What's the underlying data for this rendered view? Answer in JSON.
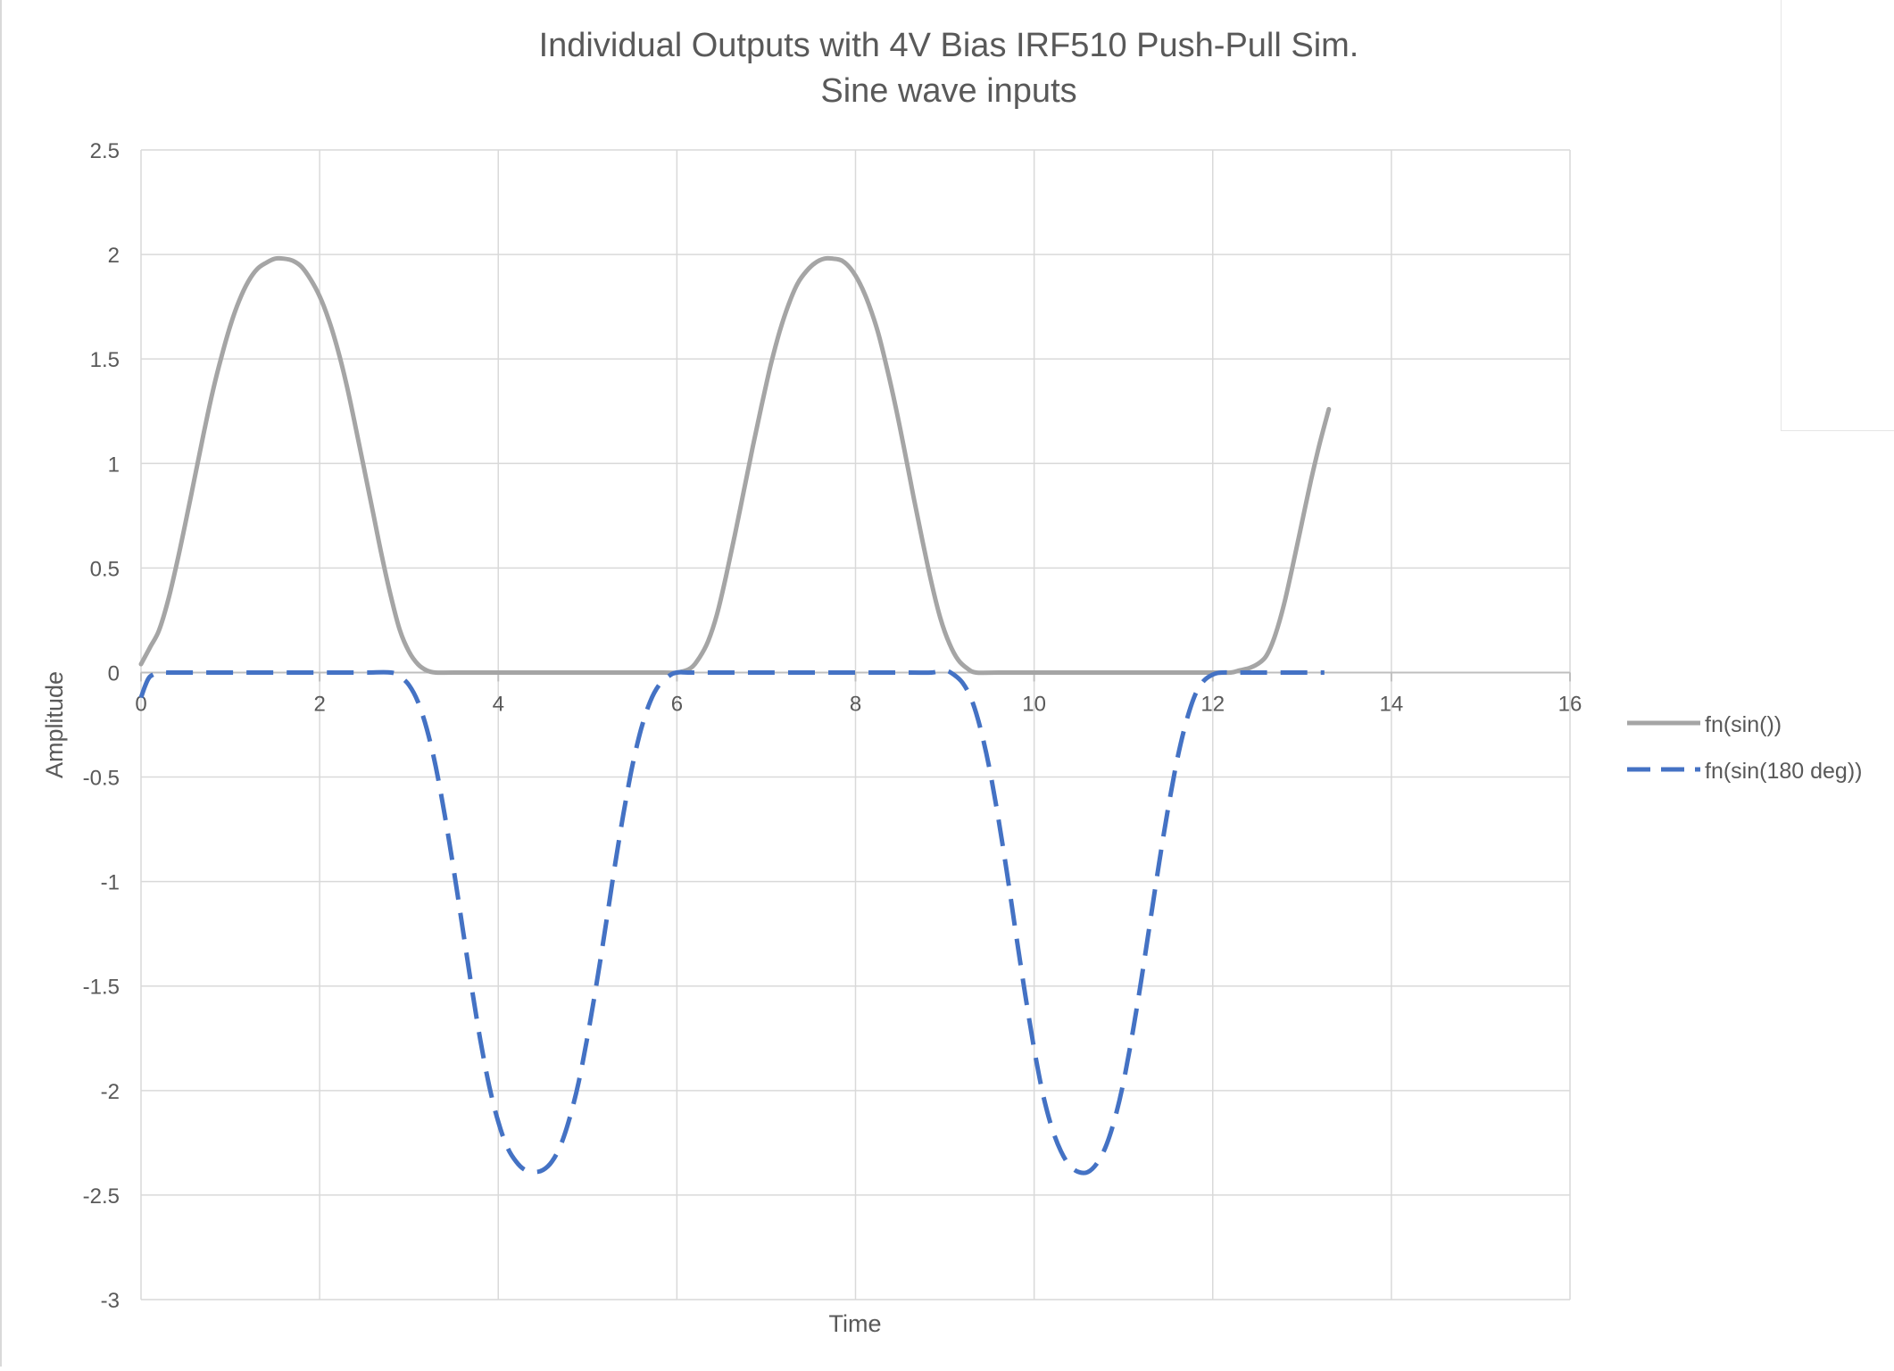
{
  "chart_data": {
    "type": "line",
    "title": "Individual Outputs with 4V Bias IRF510 Push-Pull Sim.",
    "subtitle": "Sine wave inputs",
    "xlabel": "Time",
    "ylabel": "Amplitude",
    "xlim": [
      0,
      16
    ],
    "ylim": [
      -3,
      2.5
    ],
    "x_ticks": [
      "0",
      "2",
      "4",
      "6",
      "8",
      "10",
      "12",
      "14",
      "16"
    ],
    "y_ticks": [
      "2.5",
      "2",
      "1.5",
      "1",
      "0.5",
      "0",
      "-0.5",
      "-1",
      "-1.5",
      "-2",
      "-2.5",
      "-3"
    ],
    "grid": true,
    "legend_position": "right",
    "series": [
      {
        "name": "fn(sin())",
        "color": "#a5a5a5",
        "dash": "solid",
        "points": [
          [
            0,
            0.04
          ],
          [
            0.1,
            0.12
          ],
          [
            0.2,
            0.2
          ],
          [
            0.3,
            0.34
          ],
          [
            0.4,
            0.52
          ],
          [
            0.5,
            0.72
          ],
          [
            0.6,
            0.93
          ],
          [
            0.7,
            1.14
          ],
          [
            0.8,
            1.34
          ],
          [
            0.9,
            1.51
          ],
          [
            1.0,
            1.66
          ],
          [
            1.1,
            1.78
          ],
          [
            1.2,
            1.87
          ],
          [
            1.3,
            1.93
          ],
          [
            1.4,
            1.96
          ],
          [
            1.5,
            1.98
          ],
          [
            1.6,
            1.98
          ],
          [
            1.7,
            1.97
          ],
          [
            1.8,
            1.94
          ],
          [
            1.9,
            1.88
          ],
          [
            2.0,
            1.8
          ],
          [
            2.1,
            1.69
          ],
          [
            2.2,
            1.55
          ],
          [
            2.3,
            1.38
          ],
          [
            2.4,
            1.18
          ],
          [
            2.5,
            0.97
          ],
          [
            2.6,
            0.76
          ],
          [
            2.7,
            0.55
          ],
          [
            2.8,
            0.36
          ],
          [
            2.9,
            0.2
          ],
          [
            3.0,
            0.1
          ],
          [
            3.1,
            0.04
          ],
          [
            3.2,
            0.01
          ],
          [
            3.3,
            0.0
          ],
          [
            3.5,
            0.0
          ],
          [
            4.0,
            0.0
          ],
          [
            5.0,
            0.0
          ],
          [
            5.6,
            0.0
          ],
          [
            5.85,
            0.0
          ],
          [
            6.0,
            0.0
          ],
          [
            6.15,
            0.02
          ],
          [
            6.25,
            0.07
          ],
          [
            6.35,
            0.15
          ],
          [
            6.45,
            0.28
          ],
          [
            6.55,
            0.46
          ],
          [
            6.65,
            0.66
          ],
          [
            6.75,
            0.87
          ],
          [
            6.85,
            1.08
          ],
          [
            6.95,
            1.28
          ],
          [
            7.05,
            1.47
          ],
          [
            7.15,
            1.63
          ],
          [
            7.25,
            1.76
          ],
          [
            7.35,
            1.86
          ],
          [
            7.45,
            1.92
          ],
          [
            7.55,
            1.96
          ],
          [
            7.65,
            1.98
          ],
          [
            7.75,
            1.98
          ],
          [
            7.85,
            1.97
          ],
          [
            7.95,
            1.93
          ],
          [
            8.05,
            1.86
          ],
          [
            8.15,
            1.76
          ],
          [
            8.25,
            1.63
          ],
          [
            8.35,
            1.46
          ],
          [
            8.45,
            1.27
          ],
          [
            8.55,
            1.06
          ],
          [
            8.65,
            0.84
          ],
          [
            8.75,
            0.63
          ],
          [
            8.85,
            0.43
          ],
          [
            8.95,
            0.26
          ],
          [
            9.05,
            0.14
          ],
          [
            9.15,
            0.06
          ],
          [
            9.25,
            0.02
          ],
          [
            9.35,
            0.0
          ],
          [
            9.6,
            0.0
          ],
          [
            10.5,
            0.0
          ],
          [
            11.5,
            0.0
          ],
          [
            12.0,
            0.0
          ],
          [
            12.2,
            0.0
          ],
          [
            12.3,
            0.01
          ],
          [
            12.4,
            0.02
          ],
          [
            12.5,
            0.04
          ],
          [
            12.6,
            0.08
          ],
          [
            12.7,
            0.18
          ],
          [
            12.8,
            0.33
          ],
          [
            12.9,
            0.52
          ],
          [
            13.0,
            0.72
          ],
          [
            13.1,
            0.92
          ],
          [
            13.2,
            1.1
          ],
          [
            13.3,
            1.26
          ]
        ]
      },
      {
        "name": "fn(sin(180 deg))",
        "color": "#4472c4",
        "dash": "dashed",
        "points": [
          [
            0,
            -0.12
          ],
          [
            0.05,
            -0.06
          ],
          [
            0.1,
            -0.02
          ],
          [
            0.2,
            0.0
          ],
          [
            0.3,
            0.0
          ],
          [
            0.5,
            0.0
          ],
          [
            1.0,
            0.0
          ],
          [
            2.0,
            0.0
          ],
          [
            2.5,
            0.0
          ],
          [
            2.8,
            0.0
          ],
          [
            2.9,
            -0.02
          ],
          [
            3.0,
            -0.06
          ],
          [
            3.1,
            -0.14
          ],
          [
            3.2,
            -0.27
          ],
          [
            3.3,
            -0.45
          ],
          [
            3.4,
            -0.68
          ],
          [
            3.5,
            -0.94
          ],
          [
            3.6,
            -1.22
          ],
          [
            3.7,
            -1.5
          ],
          [
            3.8,
            -1.76
          ],
          [
            3.9,
            -1.98
          ],
          [
            4.0,
            -2.15
          ],
          [
            4.1,
            -2.27
          ],
          [
            4.2,
            -2.34
          ],
          [
            4.3,
            -2.38
          ],
          [
            4.4,
            -2.39
          ],
          [
            4.5,
            -2.38
          ],
          [
            4.6,
            -2.34
          ],
          [
            4.7,
            -2.26
          ],
          [
            4.8,
            -2.13
          ],
          [
            4.9,
            -1.96
          ],
          [
            5.0,
            -1.74
          ],
          [
            5.1,
            -1.49
          ],
          [
            5.2,
            -1.22
          ],
          [
            5.3,
            -0.94
          ],
          [
            5.4,
            -0.68
          ],
          [
            5.5,
            -0.45
          ],
          [
            5.6,
            -0.27
          ],
          [
            5.7,
            -0.14
          ],
          [
            5.8,
            -0.06
          ],
          [
            5.9,
            -0.02
          ],
          [
            6.0,
            0.0
          ],
          [
            6.2,
            0.0
          ],
          [
            7.0,
            0.0
          ],
          [
            8.0,
            0.0
          ],
          [
            8.6,
            0.0
          ],
          [
            8.85,
            0.0
          ],
          [
            9.0,
            0.01
          ],
          [
            9.1,
            -0.01
          ],
          [
            9.2,
            -0.05
          ],
          [
            9.3,
            -0.13
          ],
          [
            9.4,
            -0.27
          ],
          [
            9.5,
            -0.46
          ],
          [
            9.6,
            -0.7
          ],
          [
            9.7,
            -0.97
          ],
          [
            9.8,
            -1.26
          ],
          [
            9.9,
            -1.54
          ],
          [
            10.0,
            -1.8
          ],
          [
            10.1,
            -2.02
          ],
          [
            10.2,
            -2.18
          ],
          [
            10.3,
            -2.29
          ],
          [
            10.4,
            -2.36
          ],
          [
            10.5,
            -2.39
          ],
          [
            10.6,
            -2.39
          ],
          [
            10.7,
            -2.35
          ],
          [
            10.8,
            -2.27
          ],
          [
            10.9,
            -2.14
          ],
          [
            11.0,
            -1.96
          ],
          [
            11.1,
            -1.73
          ],
          [
            11.2,
            -1.47
          ],
          [
            11.3,
            -1.19
          ],
          [
            11.4,
            -0.91
          ],
          [
            11.5,
            -0.65
          ],
          [
            11.6,
            -0.42
          ],
          [
            11.7,
            -0.24
          ],
          [
            11.8,
            -0.11
          ],
          [
            11.9,
            -0.04
          ],
          [
            12.0,
            -0.01
          ],
          [
            12.1,
            0.0
          ],
          [
            12.3,
            0.0
          ],
          [
            13.0,
            0.0
          ],
          [
            13.25,
            0.0
          ]
        ]
      }
    ]
  }
}
